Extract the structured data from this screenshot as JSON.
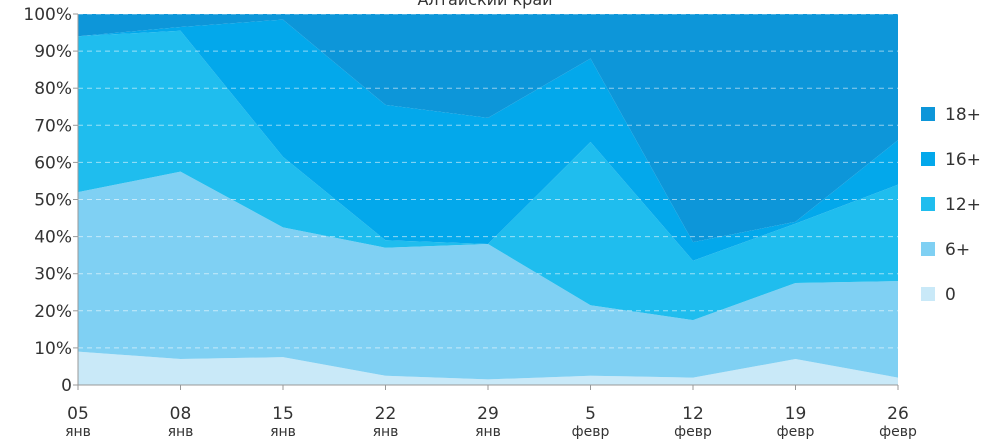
{
  "chart_data": {
    "type": "area",
    "stacking": "percent",
    "title": "Алтайский край",
    "categories": [
      {
        "top": "05",
        "bottom": "янв"
      },
      {
        "top": "08",
        "bottom": "янв"
      },
      {
        "top": "15",
        "bottom": "янв"
      },
      {
        "top": "22",
        "bottom": "янв"
      },
      {
        "top": "29",
        "bottom": "янв"
      },
      {
        "top": "5",
        "bottom": "февр"
      },
      {
        "top": "12",
        "bottom": "февр"
      },
      {
        "top": "19",
        "bottom": "февр"
      },
      {
        "top": "26",
        "bottom": "февр"
      }
    ],
    "series": [
      {
        "name": "0",
        "color": "#c9e9f8",
        "values": [
          9,
          7,
          7.5,
          2.5,
          1.5,
          2.5,
          2,
          7,
          2
        ]
      },
      {
        "name": "6+",
        "color": "#7fd0f3",
        "values": [
          43,
          50.5,
          35,
          34.5,
          36.5,
          19,
          15.5,
          20.5,
          26
        ]
      },
      {
        "name": "12+",
        "color": "#1fbdee",
        "values": [
          42,
          38,
          19,
          2,
          0,
          44,
          16,
          16,
          26
        ]
      },
      {
        "name": "16+",
        "color": "#03a8eb",
        "values": [
          0,
          1,
          37,
          36.5,
          34,
          22.5,
          5,
          0.5,
          12
        ]
      },
      {
        "name": "18+",
        "color": "#0d96d9",
        "values": [
          6,
          3.5,
          1.5,
          24.5,
          28,
          12,
          61.5,
          56,
          34
        ]
      }
    ],
    "y_ticks": [
      "0",
      "10%",
      "20%",
      "30%",
      "40%",
      "50%",
      "60%",
      "70%",
      "80%",
      "90%",
      "100%"
    ],
    "ylim": [
      0,
      100
    ],
    "grid": true,
    "legend_position": "right"
  }
}
